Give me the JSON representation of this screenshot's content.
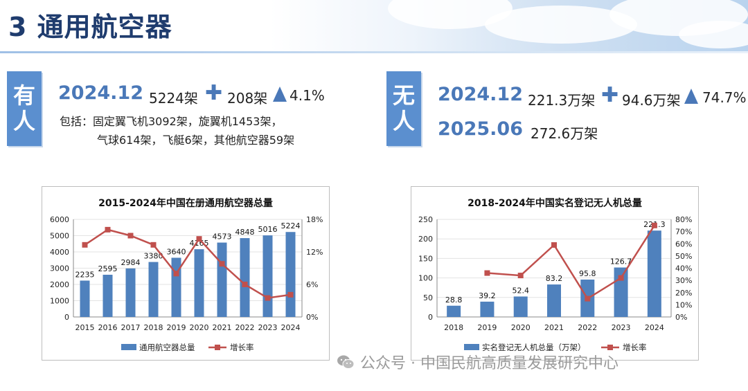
{
  "page": {
    "title": "3 通用航空器"
  },
  "manned": {
    "tag": [
      "有",
      "人"
    ],
    "date": "2024.12",
    "total": "5224架",
    "increase": "208架",
    "growth": "4.1%",
    "line1": "包括：固定翼飞机3092架，旋翼机1453架，",
    "line2": "气球614架，飞艇6架，其他航空器59架"
  },
  "unmanned": {
    "tag": [
      "无",
      "人"
    ],
    "date1": "2024.12",
    "total1": "221.3万架",
    "increase": "94.6万架",
    "growth": "74.7%",
    "date2": "2025.06",
    "total2": "272.6万架"
  },
  "colors": {
    "bar": "#4f81bd",
    "line": "#c0504d",
    "accent": "#4a78b8",
    "tag": "#5b8fcf"
  },
  "icons": [
    "plus-icon",
    "up-triangle-icon",
    "wechat-icon"
  ],
  "chart_data": [
    {
      "type": "bar",
      "title": "2015-2024年中国在册通用航空器总量",
      "categories": [
        "2015",
        "2016",
        "2017",
        "2018",
        "2019",
        "2020",
        "2021",
        "2022",
        "2023",
        "2024"
      ],
      "series": [
        {
          "name": "通用航空器总量",
          "type": "bar",
          "axis": "left",
          "values": [
            2235,
            2595,
            2984,
            3380,
            3640,
            4165,
            4573,
            4848,
            5016,
            5224
          ]
        },
        {
          "name": "增长率",
          "type": "line",
          "axis": "right",
          "values": [
            13.3,
            16.1,
            15.0,
            13.3,
            8.0,
            14.4,
            9.8,
            6.0,
            3.5,
            4.1
          ]
        }
      ],
      "ylim": [
        0,
        6000
      ],
      "yticks": [
        "0",
        "1000",
        "2000",
        "3000",
        "4000",
        "5000",
        "6000"
      ],
      "y2lim": [
        0,
        18
      ],
      "y2ticks": [
        "0%",
        "6%",
        "12%",
        "18%"
      ],
      "legend": "bottom"
    },
    {
      "type": "bar",
      "title": "2018-2024年中国实名登记无人机总量",
      "categories": [
        "2018",
        "2019",
        "2020",
        "2021",
        "2022",
        "2023",
        "2024"
      ],
      "series": [
        {
          "name": "实名登记无人机总量（万架）",
          "type": "bar",
          "axis": "left",
          "values": [
            28.8,
            39.2,
            52.4,
            83.2,
            95.8,
            126.7,
            221.3
          ]
        },
        {
          "name": "增长率",
          "type": "line",
          "axis": "right",
          "values": [
            null,
            36,
            34,
            59,
            15,
            32,
            75
          ]
        }
      ],
      "ylim": [
        0,
        250
      ],
      "yticks": [
        "0",
        "50",
        "100",
        "150",
        "200",
        "250"
      ],
      "y2lim": [
        0,
        80
      ],
      "y2ticks": [
        "0%",
        "10%",
        "20%",
        "30%",
        "40%",
        "50%",
        "60%",
        "70%",
        "80%"
      ],
      "legend": "bottom"
    }
  ],
  "watermark": "公众号 · 中国民航高质量发展研究中心"
}
